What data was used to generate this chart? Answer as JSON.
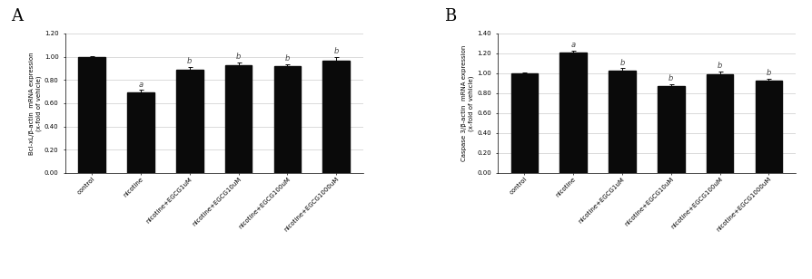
{
  "panel_A": {
    "title": "A",
    "ylabel": "Bcl-xL/β-actin  mRNA expression\n(x-fold of vehicle)",
    "categories": [
      "control",
      "nicotine",
      "nicotine+EGCG1uM",
      "nicotine+EGCG10uM",
      "nicotine+EGCG100uM",
      "nicotine+EGCG1000uM"
    ],
    "values": [
      1.0,
      0.695,
      0.89,
      0.925,
      0.92,
      0.965
    ],
    "errors": [
      0.008,
      0.018,
      0.025,
      0.025,
      0.018,
      0.03
    ],
    "annotations": [
      "",
      "a",
      "b",
      "b",
      "b",
      "b"
    ],
    "ylim": [
      0,
      1.2
    ],
    "yticks": [
      0.0,
      0.2,
      0.4,
      0.6,
      0.8,
      1.0,
      1.2
    ],
    "bar_color": "#0a0a0a",
    "error_color": "#0a0a0a"
  },
  "panel_B": {
    "title": "B",
    "ylabel": "Caspase 3/β-actin  mRNA expression\n(x-fold of vehicle)",
    "categories": [
      "control",
      "nicotine",
      "nicotine+EGCG1uM",
      "nicotine+EGCG10uM",
      "nicotine+EGCG100uM",
      "nicotine+EGCG1000uM"
    ],
    "values": [
      1.0,
      1.205,
      1.025,
      0.875,
      0.99,
      0.93
    ],
    "errors": [
      0.012,
      0.022,
      0.025,
      0.018,
      0.03,
      0.018
    ],
    "annotations": [
      "",
      "a",
      "b",
      "b",
      "b",
      "b"
    ],
    "ylim": [
      0,
      1.4
    ],
    "yticks": [
      0.0,
      0.2,
      0.4,
      0.6,
      0.8,
      1.0,
      1.2,
      1.4
    ],
    "bar_color": "#0a0a0a",
    "error_color": "#0a0a0a"
  },
  "figsize": [
    8.94,
    3.08
  ],
  "dpi": 100,
  "background_color": "#ffffff",
  "tick_label_fontsize": 5.0,
  "ylabel_fontsize": 5.0,
  "annotation_fontsize": 6.0,
  "panel_label_fontsize": 13,
  "bar_width": 0.55,
  "grid_color": "#cccccc",
  "grid_linewidth": 0.5,
  "tick_rotation": 45
}
